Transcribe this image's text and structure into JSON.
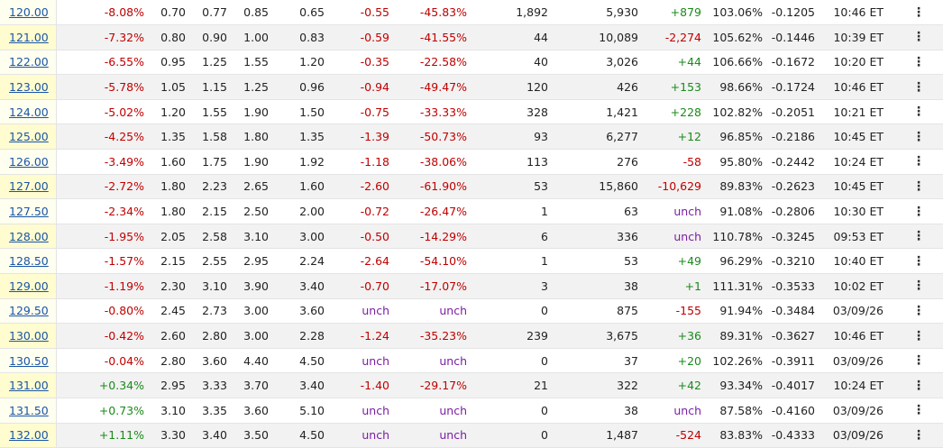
{
  "colors": {
    "negative": "#c00000",
    "positive": "#1a8a1a",
    "unchanged": "#7a1fa2",
    "strike_link": "#1a55a6",
    "strike_bg": "#fffff0"
  },
  "icons": {
    "row_menu": "vertical-ellipsis-icon"
  },
  "menu_glyph": "⋮",
  "rows": [
    {
      "strike": "120.00",
      "moneyness": "-8.08%",
      "bid": "0.70",
      "mid": "0.77",
      "ask": "0.85",
      "last": "0.65",
      "change": "-0.55",
      "pct_change": "-45.83%",
      "volume": "1,892",
      "open_int": "5,930",
      "oi_change": "+879",
      "iv": "103.06%",
      "delta": "-0.1205",
      "time": "10:46 ET"
    },
    {
      "strike": "121.00",
      "moneyness": "-7.32%",
      "bid": "0.80",
      "mid": "0.90",
      "ask": "1.00",
      "last": "0.83",
      "change": "-0.59",
      "pct_change": "-41.55%",
      "volume": "44",
      "open_int": "10,089",
      "oi_change": "-2,274",
      "iv": "105.62%",
      "delta": "-0.1446",
      "time": "10:39 ET"
    },
    {
      "strike": "122.00",
      "moneyness": "-6.55%",
      "bid": "0.95",
      "mid": "1.25",
      "ask": "1.55",
      "last": "1.20",
      "change": "-0.35",
      "pct_change": "-22.58%",
      "volume": "40",
      "open_int": "3,026",
      "oi_change": "+44",
      "iv": "106.66%",
      "delta": "-0.1672",
      "time": "10:20 ET"
    },
    {
      "strike": "123.00",
      "moneyness": "-5.78%",
      "bid": "1.05",
      "mid": "1.15",
      "ask": "1.25",
      "last": "0.96",
      "change": "-0.94",
      "pct_change": "-49.47%",
      "volume": "120",
      "open_int": "426",
      "oi_change": "+153",
      "iv": "98.66%",
      "delta": "-0.1724",
      "time": "10:46 ET"
    },
    {
      "strike": "124.00",
      "moneyness": "-5.02%",
      "bid": "1.20",
      "mid": "1.55",
      "ask": "1.90",
      "last": "1.50",
      "change": "-0.75",
      "pct_change": "-33.33%",
      "volume": "328",
      "open_int": "1,421",
      "oi_change": "+228",
      "iv": "102.82%",
      "delta": "-0.2051",
      "time": "10:21 ET"
    },
    {
      "strike": "125.00",
      "moneyness": "-4.25%",
      "bid": "1.35",
      "mid": "1.58",
      "ask": "1.80",
      "last": "1.35",
      "change": "-1.39",
      "pct_change": "-50.73%",
      "volume": "93",
      "open_int": "6,277",
      "oi_change": "+12",
      "iv": "96.85%",
      "delta": "-0.2186",
      "time": "10:45 ET"
    },
    {
      "strike": "126.00",
      "moneyness": "-3.49%",
      "bid": "1.60",
      "mid": "1.75",
      "ask": "1.90",
      "last": "1.92",
      "change": "-1.18",
      "pct_change": "-38.06%",
      "volume": "113",
      "open_int": "276",
      "oi_change": "-58",
      "iv": "95.80%",
      "delta": "-0.2442",
      "time": "10:24 ET"
    },
    {
      "strike": "127.00",
      "moneyness": "-2.72%",
      "bid": "1.80",
      "mid": "2.23",
      "ask": "2.65",
      "last": "1.60",
      "change": "-2.60",
      "pct_change": "-61.90%",
      "volume": "53",
      "open_int": "15,860",
      "oi_change": "-10,629",
      "iv": "89.83%",
      "delta": "-0.2623",
      "time": "10:45 ET"
    },
    {
      "strike": "127.50",
      "moneyness": "-2.34%",
      "bid": "1.80",
      "mid": "2.15",
      "ask": "2.50",
      "last": "2.00",
      "change": "-0.72",
      "pct_change": "-26.47%",
      "volume": "1",
      "open_int": "63",
      "oi_change": "unch",
      "iv": "91.08%",
      "delta": "-0.2806",
      "time": "10:30 ET"
    },
    {
      "strike": "128.00",
      "moneyness": "-1.95%",
      "bid": "2.05",
      "mid": "2.58",
      "ask": "3.10",
      "last": "3.00",
      "change": "-0.50",
      "pct_change": "-14.29%",
      "volume": "6",
      "open_int": "336",
      "oi_change": "unch",
      "iv": "110.78%",
      "delta": "-0.3245",
      "time": "09:53 ET"
    },
    {
      "strike": "128.50",
      "moneyness": "-1.57%",
      "bid": "2.15",
      "mid": "2.55",
      "ask": "2.95",
      "last": "2.24",
      "change": "-2.64",
      "pct_change": "-54.10%",
      "volume": "1",
      "open_int": "53",
      "oi_change": "+49",
      "iv": "96.29%",
      "delta": "-0.3210",
      "time": "10:40 ET"
    },
    {
      "strike": "129.00",
      "moneyness": "-1.19%",
      "bid": "2.30",
      "mid": "3.10",
      "ask": "3.90",
      "last": "3.40",
      "change": "-0.70",
      "pct_change": "-17.07%",
      "volume": "3",
      "open_int": "38",
      "oi_change": "+1",
      "iv": "111.31%",
      "delta": "-0.3533",
      "time": "10:02 ET"
    },
    {
      "strike": "129.50",
      "moneyness": "-0.80%",
      "bid": "2.45",
      "mid": "2.73",
      "ask": "3.00",
      "last": "3.60",
      "change": "unch",
      "pct_change": "unch",
      "volume": "0",
      "open_int": "875",
      "oi_change": "-155",
      "iv": "91.94%",
      "delta": "-0.3484",
      "time": "03/09/26"
    },
    {
      "strike": "130.00",
      "moneyness": "-0.42%",
      "bid": "2.60",
      "mid": "2.80",
      "ask": "3.00",
      "last": "2.28",
      "change": "-1.24",
      "pct_change": "-35.23%",
      "volume": "239",
      "open_int": "3,675",
      "oi_change": "+36",
      "iv": "89.31%",
      "delta": "-0.3627",
      "time": "10:46 ET"
    },
    {
      "strike": "130.50",
      "moneyness": "-0.04%",
      "bid": "2.80",
      "mid": "3.60",
      "ask": "4.40",
      "last": "4.50",
      "change": "unch",
      "pct_change": "unch",
      "volume": "0",
      "open_int": "37",
      "oi_change": "+20",
      "iv": "102.26%",
      "delta": "-0.3911",
      "time": "03/09/26"
    },
    {
      "strike": "131.00",
      "moneyness": "+0.34%",
      "bid": "2.95",
      "mid": "3.33",
      "ask": "3.70",
      "last": "3.40",
      "change": "-1.40",
      "pct_change": "-29.17%",
      "volume": "21",
      "open_int": "322",
      "oi_change": "+42",
      "iv": "93.34%",
      "delta": "-0.4017",
      "time": "10:24 ET"
    },
    {
      "strike": "131.50",
      "moneyness": "+0.73%",
      "bid": "3.10",
      "mid": "3.35",
      "ask": "3.60",
      "last": "5.10",
      "change": "unch",
      "pct_change": "unch",
      "volume": "0",
      "open_int": "38",
      "oi_change": "unch",
      "iv": "87.58%",
      "delta": "-0.4160",
      "time": "03/09/26"
    },
    {
      "strike": "132.00",
      "moneyness": "+1.11%",
      "bid": "3.30",
      "mid": "3.40",
      "ask": "3.50",
      "last": "4.50",
      "change": "unch",
      "pct_change": "unch",
      "volume": "0",
      "open_int": "1,487",
      "oi_change": "-524",
      "iv": "83.83%",
      "delta": "-0.4333",
      "time": "03/09/26"
    }
  ]
}
